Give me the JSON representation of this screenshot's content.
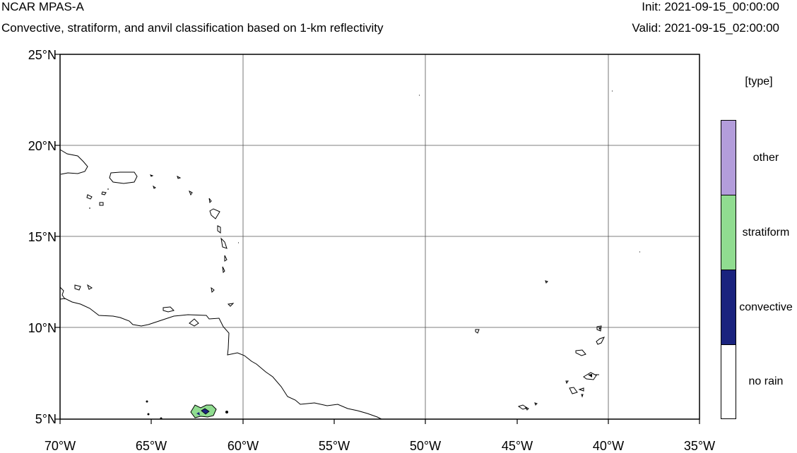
{
  "header": {
    "title": "NCAR MPAS-A",
    "subtitle": "Convective, stratiform, and anvil classification based on 1-km reflectivity",
    "init": "Init: 2021-09-15_00:00:00",
    "valid": "Valid: 2021-09-15_02:00:00"
  },
  "map": {
    "lon_range": [
      -70,
      -35
    ],
    "lat_range": [
      5,
      25
    ],
    "grid": true,
    "lat_ticks": [
      "5°N",
      "10°N",
      "15°N",
      "20°N",
      "25°N"
    ],
    "lon_ticks": [
      "70°W",
      "65°W",
      "60°W",
      "55°W",
      "50°W",
      "45°W",
      "40°W",
      "35°W"
    ]
  },
  "legend": {
    "title": "[type]",
    "classes": [
      {
        "label": "other",
        "color": "#b39ddb"
      },
      {
        "label": "stratiform",
        "color": "#90dc90"
      },
      {
        "label": "convective",
        "color": "#1a237e"
      },
      {
        "label": "no rain",
        "color": "#ffffff"
      }
    ]
  }
}
